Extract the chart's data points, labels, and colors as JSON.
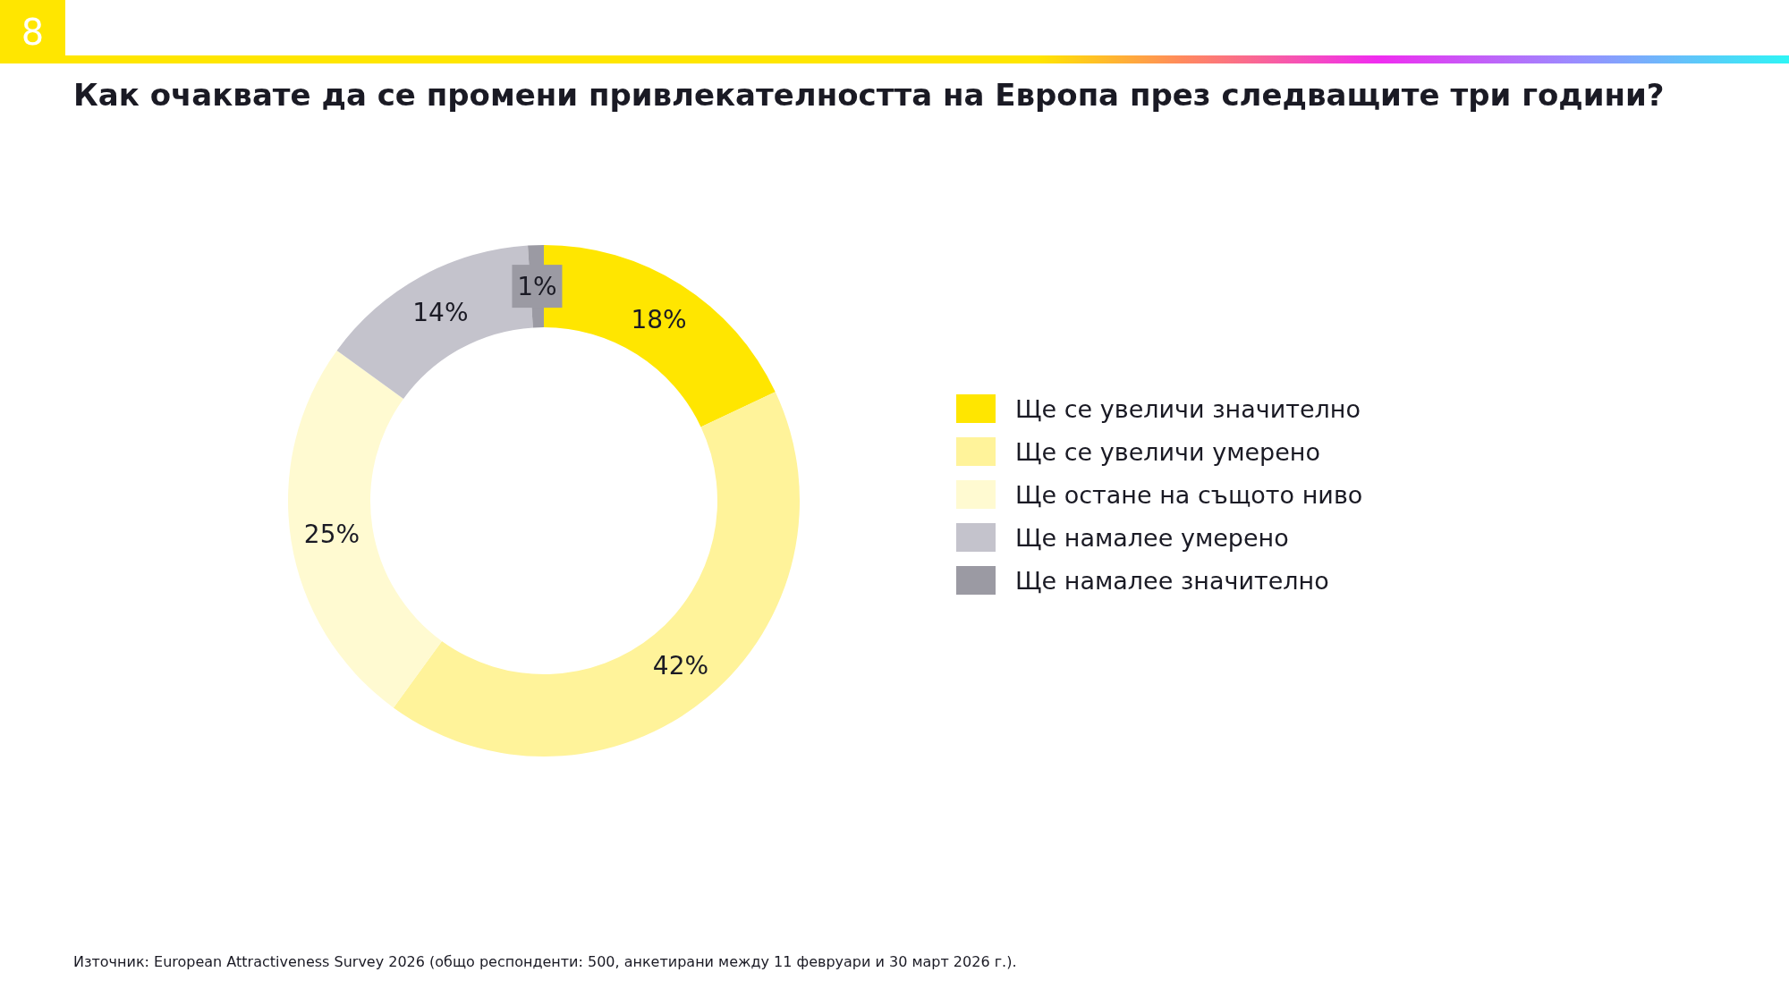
{
  "chart_data": {
    "type": "donut",
    "title": "Как очаквате да се промени привлекателността на Европа през следващите три години?",
    "categories": [
      "Ще се увеличи значително",
      "Ще се увеличи умерено",
      "Ще остане на същото ниво",
      "Ще намалее умерено",
      "Ще намалее значително"
    ],
    "values": [
      18,
      42,
      25,
      14,
      1
    ],
    "value_labels": [
      "18%",
      "42%",
      "25%",
      "14%",
      "1%"
    ],
    "colors": [
      "#ffe600",
      "#fff39a",
      "#fffad1",
      "#c4c3cc",
      "#9b9aa3"
    ],
    "legend": "right",
    "annotations": [
      "8",
      "Източник: European Attractiveness Survey 2026 (общо респонденти: 500, анкетирани между 11 февруари и 30 март 2026 г.)."
    ]
  }
}
